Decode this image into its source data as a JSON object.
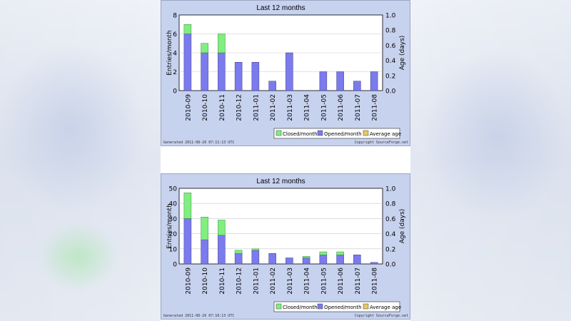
{
  "chart_data": [
    {
      "type": "bar",
      "title": "Last 12 months",
      "ylabel": "Entries/month",
      "y2label": "Age (days)",
      "ylim": [
        0,
        8
      ],
      "yticks": [
        0,
        2,
        4,
        6,
        8
      ],
      "y2lim": [
        0,
        1.0
      ],
      "y2ticks": [
        "0.0",
        "0.2",
        "0.4",
        "0.6",
        "0.8",
        "1.0"
      ],
      "grid": true,
      "legend_position": "bottom-right",
      "categories": [
        "2010-09",
        "2010-10",
        "2010-11",
        "2010-12",
        "2011-01",
        "2011-02",
        "2011-03",
        "2011-04",
        "2011-05",
        "2011-06",
        "2011-07",
        "2011-08"
      ],
      "series": [
        {
          "name": "Closed/month",
          "color": "#80ee80",
          "values": [
            1,
            1,
            2,
            0,
            0,
            0,
            0,
            0,
            0,
            0,
            0,
            0
          ]
        },
        {
          "name": "Opened/month",
          "color": "#7b7bee",
          "values": [
            6,
            4,
            4,
            3,
            3,
            1,
            4,
            0,
            2,
            2,
            1,
            2
          ]
        },
        {
          "name": "Average age",
          "color": "#e8c860",
          "values": [
            0,
            0,
            0,
            0,
            0,
            0,
            0,
            0,
            0,
            0,
            0,
            0
          ]
        }
      ],
      "footer_left": "Generated 2011-08-26 07:11:13 UTC",
      "footer_right": "Copyright SourceForge.net"
    },
    {
      "type": "bar",
      "title": "Last 12 months",
      "ylabel": "Entries/month",
      "y2label": "Age (days)",
      "ylim": [
        0,
        50
      ],
      "yticks": [
        0,
        10,
        20,
        30,
        40,
        50
      ],
      "y2lim": [
        0,
        1.0
      ],
      "y2ticks": [
        "0.0",
        "0.2",
        "0.4",
        "0.6",
        "0.8",
        "1.0"
      ],
      "grid": true,
      "legend_position": "bottom-right",
      "categories": [
        "2010-09",
        "2010-10",
        "2010-11",
        "2010-12",
        "2011-01",
        "2011-02",
        "2011-03",
        "2011-04",
        "2011-05",
        "2011-06",
        "2011-07",
        "2011-08"
      ],
      "series": [
        {
          "name": "Closed/month",
          "color": "#80ee80",
          "values": [
            17,
            15,
            10,
            2,
            1,
            0,
            0,
            1,
            2,
            2,
            0,
            0
          ]
        },
        {
          "name": "Opened/month",
          "color": "#7b7bee",
          "values": [
            30,
            16,
            19,
            7,
            9,
            7,
            4,
            4,
            6,
            6,
            6,
            1
          ]
        },
        {
          "name": "Average age",
          "color": "#e8c860",
          "values": [
            0,
            0,
            0,
            0,
            0,
            0,
            0,
            0,
            0,
            0,
            0,
            0
          ]
        }
      ],
      "footer_left": "Generated 2011-08-26 07:10:13 UTC",
      "footer_right": "Copyright SourceForge.net"
    }
  ]
}
